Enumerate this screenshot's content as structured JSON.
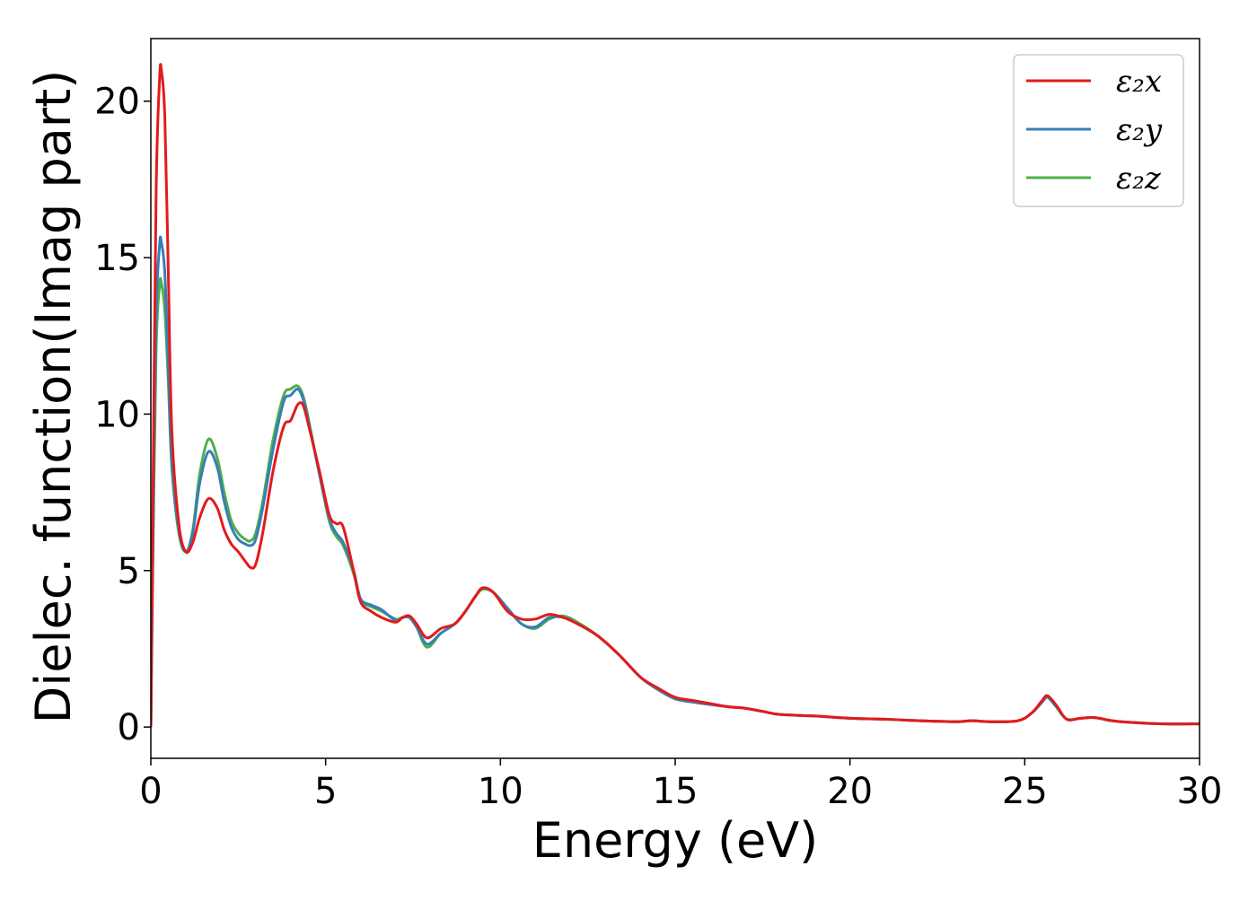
{
  "chart_data": {
    "type": "line",
    "title": "",
    "xlabel": "Energy (eV)",
    "ylabel": "Dielec. function(Imag part)",
    "xlim": [
      0,
      30
    ],
    "ylim": [
      -1,
      22
    ],
    "xticks": [
      "0",
      "5",
      "10",
      "15",
      "20",
      "25",
      "30"
    ],
    "yticks": [
      "0",
      "5",
      "10",
      "15",
      "20"
    ],
    "grid": false,
    "legend": {
      "position": "top-right",
      "entries": [
        "ε₂x",
        "ε₂y",
        "ε₂z"
      ]
    },
    "series": [
      {
        "name": "ε₂x",
        "color": "#e41a1c",
        "x": [
          0,
          0.05,
          0.15,
          0.25,
          0.3,
          0.4,
          0.5,
          0.6,
          0.8,
          1.0,
          1.2,
          1.4,
          1.65,
          1.9,
          2.1,
          2.3,
          2.5,
          2.7,
          2.85,
          3.0,
          3.2,
          3.5,
          3.8,
          4.0,
          4.2,
          4.35,
          4.5,
          4.8,
          5.1,
          5.3,
          5.5,
          5.8,
          6.0,
          6.3,
          6.6,
          7.0,
          7.2,
          7.4,
          7.6,
          7.9,
          8.3,
          8.7,
          9.0,
          9.3,
          9.5,
          9.8,
          10.2,
          10.6,
          11.0,
          11.4,
          11.8,
          12.2,
          12.8,
          13.4,
          14.0,
          14.5,
          15.0,
          15.5,
          16.0,
          16.5,
          17.0,
          17.5,
          18.0,
          19.0,
          20.0,
          21.0,
          22.0,
          23.0,
          23.5,
          24.0,
          24.8,
          25.2,
          25.5,
          25.65,
          25.9,
          26.2,
          26.6,
          27.0,
          27.5,
          28.0,
          29.0,
          30.0
        ],
        "values": [
          0.0,
          6.0,
          17.0,
          20.7,
          21.0,
          19.5,
          14.5,
          9.5,
          6.5,
          5.6,
          5.9,
          6.7,
          7.3,
          7.0,
          6.3,
          5.85,
          5.6,
          5.3,
          5.1,
          5.2,
          6.2,
          8.2,
          9.6,
          9.8,
          10.3,
          10.3,
          9.7,
          8.3,
          6.8,
          6.5,
          6.4,
          5.0,
          4.0,
          3.7,
          3.5,
          3.35,
          3.5,
          3.55,
          3.3,
          2.85,
          3.15,
          3.3,
          3.7,
          4.2,
          4.45,
          4.3,
          3.7,
          3.45,
          3.45,
          3.6,
          3.5,
          3.3,
          2.9,
          2.3,
          1.6,
          1.25,
          0.95,
          0.85,
          0.75,
          0.65,
          0.6,
          0.5,
          0.4,
          0.35,
          0.28,
          0.25,
          0.2,
          0.17,
          0.2,
          0.17,
          0.2,
          0.45,
          0.85,
          1.0,
          0.7,
          0.25,
          0.28,
          0.3,
          0.2,
          0.15,
          0.1,
          0.1
        ]
      },
      {
        "name": "ε₂y",
        "color": "#377eb8",
        "x": [
          0,
          0.05,
          0.15,
          0.25,
          0.3,
          0.4,
          0.5,
          0.6,
          0.8,
          1.0,
          1.2,
          1.4,
          1.65,
          1.9,
          2.1,
          2.3,
          2.5,
          2.7,
          2.85,
          3.0,
          3.2,
          3.5,
          3.8,
          4.0,
          4.2,
          4.35,
          4.5,
          4.8,
          5.1,
          5.3,
          5.5,
          5.8,
          6.0,
          6.3,
          6.6,
          7.0,
          7.2,
          7.4,
          7.6,
          7.9,
          8.3,
          8.7,
          9.0,
          9.3,
          9.5,
          9.8,
          10.2,
          10.6,
          11.0,
          11.4,
          11.8,
          12.2,
          12.8,
          13.4,
          14.0,
          14.5,
          15.0,
          15.5,
          16.0,
          16.5,
          17.0,
          17.5,
          18.0,
          19.0,
          20.0,
          21.0,
          22.0,
          23.0,
          23.5,
          24.0,
          24.8,
          25.2,
          25.5,
          25.65,
          25.9,
          26.2,
          26.6,
          27.0,
          27.5,
          28.0,
          29.0,
          30.0
        ],
        "values": [
          0.0,
          5.0,
          13.0,
          15.4,
          15.5,
          14.5,
          11.5,
          8.5,
          6.3,
          5.6,
          6.2,
          7.8,
          8.8,
          8.3,
          7.2,
          6.4,
          6.0,
          5.85,
          5.8,
          6.0,
          7.0,
          8.9,
          10.4,
          10.6,
          10.8,
          10.5,
          9.8,
          8.2,
          6.7,
          6.2,
          5.9,
          5.0,
          4.1,
          3.9,
          3.75,
          3.4,
          3.5,
          3.5,
          3.2,
          2.65,
          3.0,
          3.3,
          3.7,
          4.2,
          4.45,
          4.3,
          3.8,
          3.3,
          3.2,
          3.5,
          3.5,
          3.3,
          2.9,
          2.3,
          1.6,
          1.2,
          0.9,
          0.8,
          0.72,
          0.65,
          0.6,
          0.5,
          0.4,
          0.35,
          0.28,
          0.25,
          0.2,
          0.17,
          0.2,
          0.17,
          0.2,
          0.45,
          0.8,
          0.95,
          0.65,
          0.25,
          0.28,
          0.3,
          0.2,
          0.15,
          0.1,
          0.1
        ]
      },
      {
        "name": "ε₂z",
        "color": "#4daf4a",
        "x": [
          0,
          0.05,
          0.15,
          0.25,
          0.3,
          0.4,
          0.5,
          0.6,
          0.8,
          1.0,
          1.2,
          1.4,
          1.65,
          1.9,
          2.1,
          2.3,
          2.5,
          2.7,
          2.85,
          3.0,
          3.2,
          3.5,
          3.8,
          4.0,
          4.2,
          4.35,
          4.5,
          4.8,
          5.1,
          5.3,
          5.5,
          5.8,
          6.0,
          6.3,
          6.6,
          7.0,
          7.2,
          7.4,
          7.6,
          7.9,
          8.3,
          8.7,
          9.0,
          9.3,
          9.5,
          9.8,
          10.2,
          10.6,
          11.0,
          11.4,
          11.8,
          12.2,
          12.8,
          13.4,
          14.0,
          14.5,
          15.0,
          15.5,
          16.0,
          16.5,
          17.0,
          17.5,
          18.0,
          19.0,
          20.0,
          21.0,
          22.0,
          23.0,
          23.5,
          24.0,
          24.8,
          25.2,
          25.5,
          25.65,
          25.9,
          26.2,
          26.6,
          27.0,
          27.5,
          28.0,
          29.0,
          30.0
        ],
        "values": [
          0.0,
          4.5,
          12.0,
          14.1,
          14.2,
          13.3,
          11.0,
          8.3,
          6.2,
          5.6,
          6.3,
          8.1,
          9.2,
          8.6,
          7.5,
          6.6,
          6.2,
          6.0,
          5.95,
          6.2,
          7.2,
          9.2,
          10.6,
          10.8,
          10.9,
          10.6,
          9.9,
          8.2,
          6.6,
          6.1,
          5.8,
          4.9,
          4.05,
          3.85,
          3.7,
          3.45,
          3.5,
          3.5,
          3.2,
          2.55,
          3.0,
          3.3,
          3.7,
          4.2,
          4.4,
          4.3,
          3.8,
          3.3,
          3.15,
          3.45,
          3.55,
          3.35,
          2.9,
          2.3,
          1.6,
          1.2,
          0.9,
          0.8,
          0.72,
          0.65,
          0.6,
          0.5,
          0.4,
          0.35,
          0.28,
          0.25,
          0.2,
          0.17,
          0.2,
          0.17,
          0.2,
          0.45,
          0.8,
          0.95,
          0.65,
          0.25,
          0.28,
          0.3,
          0.2,
          0.15,
          0.1,
          0.1
        ]
      }
    ]
  }
}
